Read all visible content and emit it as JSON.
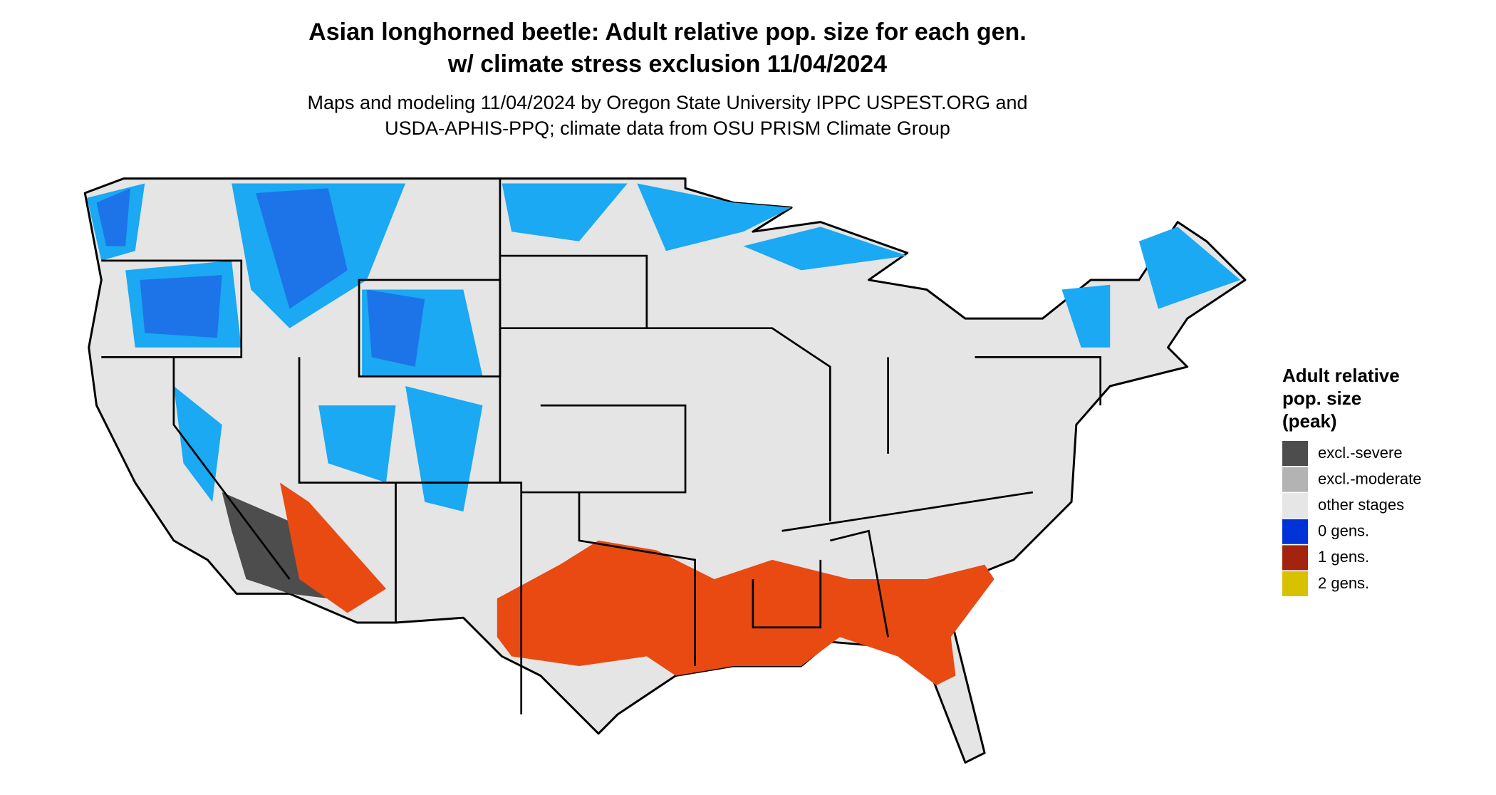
{
  "header": {
    "title": [
      "Asian longhorned beetle: Adult relative pop. size for each gen.",
      "w/ climate stress exclusion 11/04/2024"
    ],
    "subtitle": [
      "Maps and modeling 11/04/2024 by Oregon State University IPPC USPEST.ORG and",
      "USDA-APHIS-PPQ; climate data from OSU PRISM Climate Group"
    ]
  },
  "legend": {
    "title": [
      "Adult relative",
      "pop. size",
      "(peak)"
    ],
    "items": [
      {
        "label": "excl.-severe",
        "color": "#4d4d4d"
      },
      {
        "label": "excl.-moderate",
        "color": "#b3b3b3"
      },
      {
        "label": "other stages",
        "color": "#e6e6e6"
      },
      {
        "label": "0 gens.",
        "color": "#0032d8"
      },
      {
        "label": "1 gens.",
        "color": "#a3230f"
      },
      {
        "label": "2 gens.",
        "color": "#d8c200"
      }
    ]
  }
}
